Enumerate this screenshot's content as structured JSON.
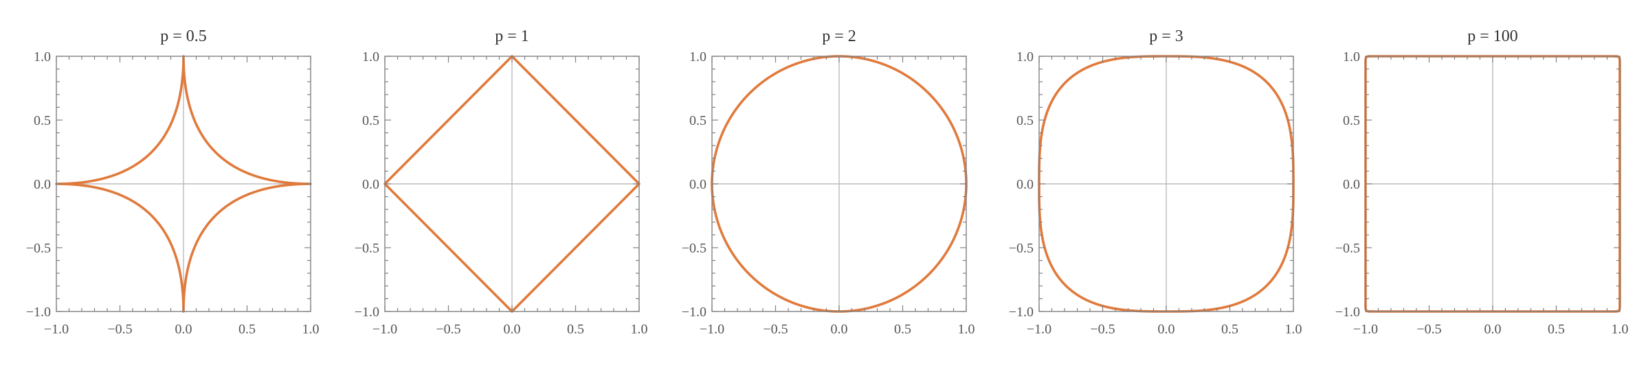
{
  "chart_data": [
    {
      "type": "line",
      "title": "p = 0.5",
      "p": 0.5,
      "xlim": [
        -1.0,
        1.0
      ],
      "ylim": [
        -1.0,
        1.0
      ],
      "xticks": [
        "−1.0",
        "−0.5",
        "0.0",
        "0.5",
        "1.0"
      ],
      "yticks": [
        "1.0",
        "0.5",
        "0.0",
        "−0.5",
        "−1.0"
      ],
      "curve": "|x|^p + |y|^p = 1",
      "grid": "axes-through-origin"
    },
    {
      "type": "line",
      "title": "p = 1",
      "p": 1,
      "xlim": [
        -1.0,
        1.0
      ],
      "ylim": [
        -1.0,
        1.0
      ],
      "xticks": [
        "−1.0",
        "−0.5",
        "0.0",
        "0.5",
        "1.0"
      ],
      "yticks": [
        "1.0",
        "0.5",
        "0.0",
        "−0.5",
        "−1.0"
      ],
      "curve": "|x|^p + |y|^p = 1",
      "grid": "axes-through-origin"
    },
    {
      "type": "line",
      "title": "p = 2",
      "p": 2,
      "xlim": [
        -1.0,
        1.0
      ],
      "ylim": [
        -1.0,
        1.0
      ],
      "xticks": [
        "−1.0",
        "−0.5",
        "0.0",
        "0.5",
        "1.0"
      ],
      "yticks": [
        "1.0",
        "0.5",
        "0.0",
        "−0.5",
        "−1.0"
      ],
      "curve": "|x|^p + |y|^p = 1",
      "grid": "axes-through-origin"
    },
    {
      "type": "line",
      "title": "p = 3",
      "p": 3,
      "xlim": [
        -1.0,
        1.0
      ],
      "ylim": [
        -1.0,
        1.0
      ],
      "xticks": [
        "−1.0",
        "−0.5",
        "0.0",
        "0.5",
        "1.0"
      ],
      "yticks": [
        "1.0",
        "0.5",
        "0.0",
        "−0.5",
        "−1.0"
      ],
      "curve": "|x|^p + |y|^p = 1",
      "grid": "axes-through-origin"
    },
    {
      "type": "line",
      "title": "p = 100",
      "p": 100,
      "xlim": [
        -1.0,
        1.0
      ],
      "ylim": [
        -1.0,
        1.0
      ],
      "xticks": [
        "−1.0",
        "−0.5",
        "0.0",
        "0.5",
        "1.0"
      ],
      "yticks": [
        "1.0",
        "0.5",
        "0.0",
        "−0.5",
        "−1.0"
      ],
      "curve": "|x|^p + |y|^p = 1",
      "grid": "axes-through-origin"
    }
  ],
  "colors": {
    "curve": "#e07a3c",
    "frame": "#808080",
    "axis_lines": "#bbbbbb"
  }
}
